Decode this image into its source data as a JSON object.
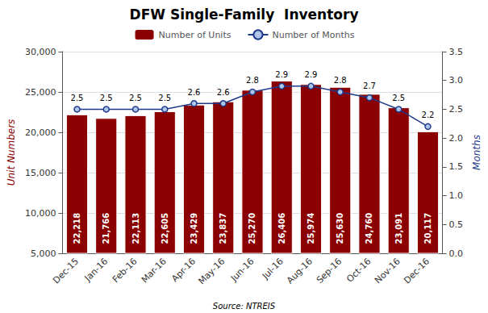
{
  "chart_data": {
    "type": "bar",
    "title": "DFW Single-Family  Inventory",
    "categories": [
      "Dec-15",
      "Jan-16",
      "Feb-16",
      "Mar-16",
      "Apr-16",
      "May-16",
      "Jun-16",
      "Jul-16",
      "Aug-16",
      "Sep-16",
      "Oct-16",
      "Nov-16",
      "Dec-16"
    ],
    "series": [
      {
        "name": "Number of Units",
        "type": "bar",
        "color": "#8B0000",
        "values": [
          22218,
          21766,
          22113,
          22605,
          23429,
          23837,
          25270,
          26406,
          25974,
          25630,
          24760,
          23091,
          20117
        ],
        "value_labels": [
          "22,218",
          "21,766",
          "22,113",
          "22,605",
          "23,429",
          "23,837",
          "25,270",
          "26,406",
          "25,974",
          "25,630",
          "24,760",
          "23,091",
          "20,117"
        ],
        "data_labels": true
      },
      {
        "name": "Number of Months",
        "type": "line",
        "axis": "y2",
        "color": "#1F3A8A",
        "marker": "circle",
        "values": [
          2.5,
          2.5,
          2.5,
          2.5,
          2.6,
          2.6,
          2.8,
          2.9,
          2.9,
          2.8,
          2.7,
          2.5,
          2.2
        ],
        "data_labels": true
      }
    ],
    "ylabel": "Unit Numbers",
    "y2label": "Months",
    "ylim": [
      5000,
      30000
    ],
    "yticks": [
      {
        "value": 5000,
        "label": "5,000"
      },
      {
        "value": 10000,
        "label": "10,000"
      },
      {
        "value": 15000,
        "label": "15,000"
      },
      {
        "value": 20000,
        "label": "20,000"
      },
      {
        "value": 25000,
        "label": "25,000"
      },
      {
        "value": 30000,
        "label": "30,000"
      }
    ],
    "y2lim": [
      0.0,
      3.5
    ],
    "y2ticks": [
      {
        "value": 0.0,
        "label": "0.0"
      },
      {
        "value": 0.5,
        "label": "0.5"
      },
      {
        "value": 1.0,
        "label": "1.0"
      },
      {
        "value": 1.5,
        "label": "1.5"
      },
      {
        "value": 2.0,
        "label": "2.0"
      },
      {
        "value": 2.5,
        "label": "2.5"
      },
      {
        "value": 3.0,
        "label": "3.0"
      },
      {
        "value": 3.5,
        "label": "3.5"
      }
    ],
    "grid": true,
    "legend": "top",
    "annotations": [
      "Source: NTREIS"
    ]
  }
}
